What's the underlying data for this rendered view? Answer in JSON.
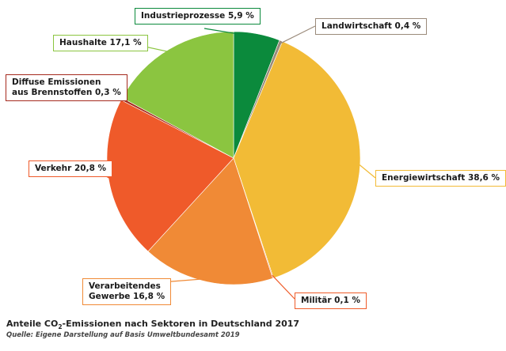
{
  "chart_data": {
    "type": "pie",
    "title": "Anteile CO₂-Emissionen nach Sektoren in Deutschland 2017",
    "source": "Quelle: Eigene Darstellung auf Basis Umweltbundesamt 2019",
    "slices": [
      {
        "name": "Industrieprozesse",
        "value": 5.9,
        "label": "Industrieprozesse 5,9 %",
        "color": "#0b8a3c"
      },
      {
        "name": "Landwirtschaft",
        "value": 0.4,
        "label": "Landwirtschaft 0,4 %",
        "color": "#9a8a7a"
      },
      {
        "name": "Energiewirtschaft",
        "value": 38.6,
        "label": "Energiewirtschaft 38,6 %",
        "color": "#f2bb36"
      },
      {
        "name": "Militär",
        "value": 0.1,
        "label": "Militär 0,1 %",
        "color": "#ef5c2a"
      },
      {
        "name": "Verarbeitendes Gewerbe",
        "value": 16.8,
        "label_lines": [
          "Verarbeitendes",
          "Gewerbe 16,8 %"
        ],
        "color": "#f08a36"
      },
      {
        "name": "Verkehr",
        "value": 20.8,
        "label": "Verkehr 20,8 %",
        "color": "#ef5a2a"
      },
      {
        "name": "Diffuse Emissionen aus Brennstoffen",
        "value": 0.3,
        "label_lines": [
          "Diffuse Emissionen",
          "aus Brennstoffen 0,3 %"
        ],
        "color": "#a52a1e"
      },
      {
        "name": "Haushalte",
        "value": 17.1,
        "label": "Haushalte 17,1 %",
        "color": "#8bc540"
      }
    ]
  },
  "caption": {
    "prefix": "Anteile CO",
    "sub": "2",
    "suffix": "-Emissionen nach Sektoren in Deutschland 2017"
  }
}
